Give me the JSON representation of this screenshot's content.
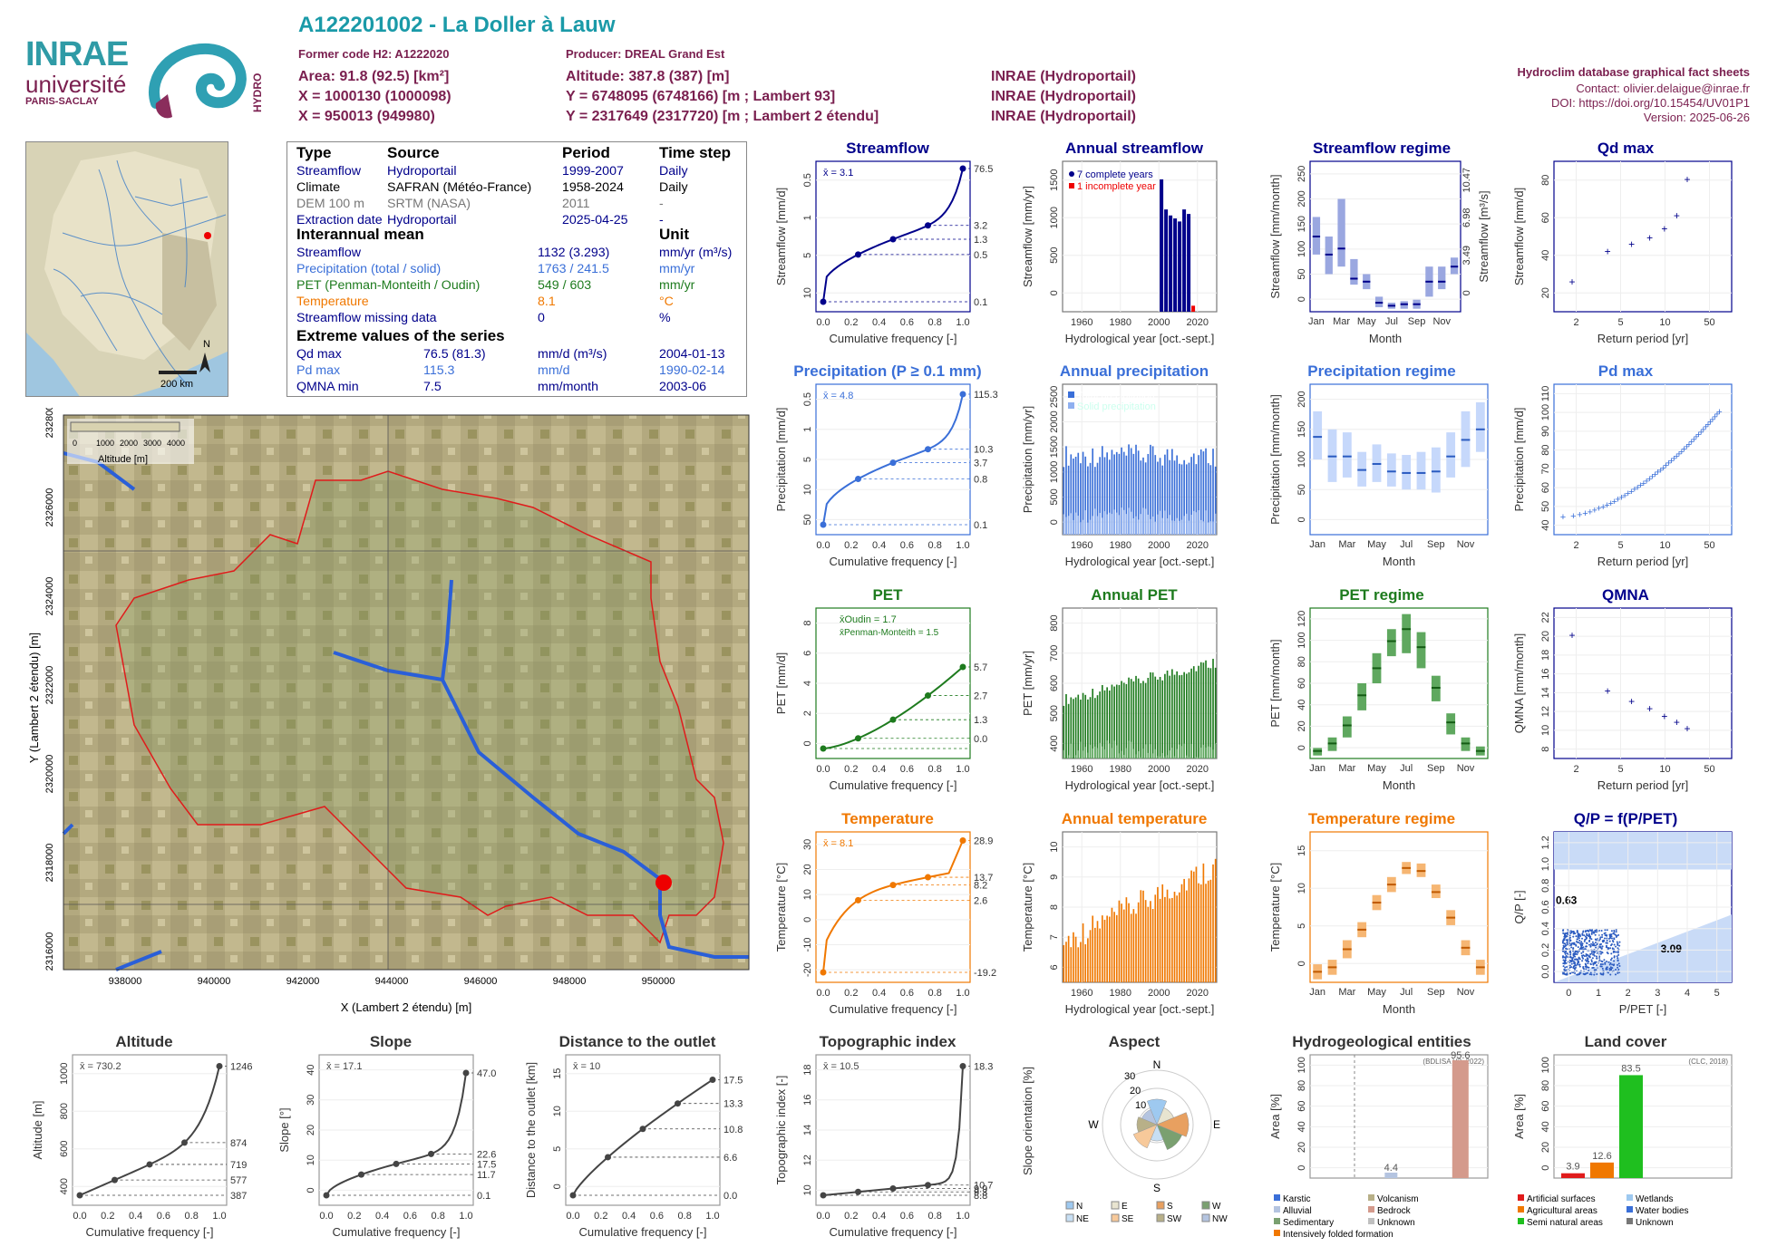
{
  "logo": {
    "inrae": "INRAE",
    "universite": "université",
    "paris_saclay": "PARIS-SACLAY",
    "hydro": "HYDRO"
  },
  "header": {
    "title": "A122201002 - La Doller à Lauw",
    "former_code": "Former code H2: A1222020",
    "producer": "Producer: DREAL Grand Est",
    "area": "Area: 91.8 (92.5) [km²]",
    "altitude": "Altitude: 387.8 (387) [m]",
    "x93": "X = 1000130 (1000098)",
    "y93": "Y = 6748095 (6748166) [m ; Lambert 93]",
    "src93": "INRAE (Hydroportail)",
    "x2e": "X = 950013 (949980)",
    "y2e": "Y = 2317649 (2317720) [m ; Lambert 2 étendu]",
    "src2e": "INRAE (Hydroportail)",
    "src_area": "INRAE (Hydroportail)",
    "db": "Hydroclim database graphical fact sheets",
    "contact": "Contact: olivier.delaigue@inrae.fr",
    "doi": "DOI: https://doi.org/10.15454/UV01P1",
    "version": "Version: 2025-06-26"
  },
  "locmap": {
    "scale": "200 km",
    "north": "N"
  },
  "colors": {
    "streamflow": "#00008b",
    "precip": "#3a6fd8",
    "pet": "#1e7b1e",
    "temp": "#f07800",
    "title": "#1a7f8f",
    "maroon": "#7a1f4f"
  },
  "info": {
    "h_type": "Type",
    "h_source": "Source",
    "h_period": "Period",
    "h_step": "Time step",
    "rows": [
      {
        "t": "Streamflow",
        "s": "Hydroportail",
        "p": "1999-2007",
        "ts": "Daily",
        "c": "#00008b"
      },
      {
        "t": "Climate",
        "s": "SAFRAN (Météo-France)",
        "p": "1958-2024",
        "ts": "Daily",
        "c": "#000"
      },
      {
        "t": "DEM 100 m",
        "s": "SRTM (NASA)",
        "p": "2011",
        "ts": "-",
        "c": "#777"
      },
      {
        "t": "Extraction date",
        "s": "Hydroportail",
        "p": "2025-04-25",
        "ts": "-",
        "c": "#00008b"
      }
    ],
    "h_mean": "Interannual mean",
    "h_unit": "Unit",
    "means": [
      {
        "t": "Streamflow",
        "v": "1132 (3.293)",
        "u": "mm/yr (m³/s)",
        "c": "#00008b"
      },
      {
        "t": "Precipitation (total / solid)",
        "v": "1763 / 241.5",
        "u": "mm/yr",
        "c": "#3a6fd8"
      },
      {
        "t": "PET (Penman-Monteith / Oudin)",
        "v": "549 / 603",
        "u": "mm/yr",
        "c": "#1e7b1e"
      },
      {
        "t": "Temperature",
        "v": "8.1",
        "u": "°C",
        "c": "#f07800"
      },
      {
        "t": "Streamflow missing data",
        "v": "0",
        "u": "%",
        "c": "#00008b"
      }
    ],
    "h_ext": "Extreme values of the series",
    "ext": [
      {
        "t": "Qd max",
        "v": "76.5 (81.3)",
        "u": "mm/d (m³/s)",
        "d": "2004-01-13",
        "c": "#00008b"
      },
      {
        "t": "Pd max",
        "v": "115.3",
        "u": "mm/d",
        "d": "1990-02-14",
        "c": "#3a6fd8"
      },
      {
        "t": "QMNA min",
        "v": "7.5",
        "u": "mm/month",
        "d": "2003-06",
        "c": "#00008b"
      }
    ]
  },
  "bigmap": {
    "legend_title": "Altitude [m]",
    "legend_ticks": [
      "0",
      "1000",
      "2000",
      "3000",
      "4000"
    ],
    "xlabel": "X (Lambert 2 étendu) [m]",
    "ylabel": "Y (Lambert 2 étendu) [m]",
    "xticks": [
      "938000",
      "940000",
      "942000",
      "944000",
      "946000",
      "948000",
      "950000"
    ],
    "yticks": [
      "2316000",
      "2318000",
      "2320000",
      "2322000",
      "2324000",
      "2326000",
      "2328000"
    ]
  },
  "charts": {
    "streamflow": {
      "title": "Streamflow",
      "ylabel": "Streamflow [mm/d]",
      "xlabel": "Cumulative frequency [-]",
      "mean": "x̄ = 3.1",
      "right": [
        "76.5",
        "3.2",
        "1.3",
        "0.5",
        "0.1"
      ],
      "yticks": [
        "10",
        "5",
        "1",
        "0.5"
      ]
    },
    "annual_streamflow": {
      "title": "Annual streamflow",
      "ylabel": "Streamflow [mm/yr]",
      "xlabel": "Hydrological year [oct.-sept.]",
      "leg1": "7 complete years",
      "leg2": "1 incomplete year",
      "yticks": [
        "0",
        "500",
        "1000",
        "1500"
      ],
      "xticks": [
        "1960",
        "1980",
        "2000",
        "2020"
      ]
    },
    "streamflow_regime": {
      "title": "Streamflow regime",
      "ylabel": "Streamflow [mm/month]",
      "ylabel2": "Streamflow [m³/s]",
      "xlabel": "Month",
      "months": [
        "Jan",
        "Mar",
        "May",
        "Jul",
        "Sep",
        "Nov"
      ],
      "yticks": [
        "0",
        "50",
        "100",
        "150",
        "200",
        "250"
      ],
      "yticks2": [
        "0",
        "3.49",
        "6.98",
        "10.47"
      ]
    },
    "qd_max": {
      "title": "Qd max",
      "ylabel": "Streamflow [mm/d]",
      "xlabel": "Return period [yr]",
      "yticks": [
        "20",
        "40",
        "60",
        "80"
      ],
      "xticks": [
        "2",
        "5",
        "10",
        "50"
      ]
    },
    "precipitation": {
      "title": "Precipitation (P ≥ 0.1 mm)",
      "ylabel": "Precipitation [mm/d]",
      "xlabel": "Cumulative frequency [-]",
      "mean": "x̄ = 4.8",
      "right": [
        "115.3",
        "10.3",
        "3.7",
        "0.8",
        "0.1"
      ],
      "yticks": [
        "50",
        "10",
        "5",
        "1",
        "0.5"
      ]
    },
    "annual_precipitation": {
      "title": "Annual precipitation",
      "ylabel": "Precipitation [mm/yr]",
      "xlabel": "Hydrological year [oct.-sept.]",
      "leg1": "Total precipitation",
      "leg2": "Solid precipitation",
      "yticks": [
        "0",
        "500",
        "1000",
        "1500",
        "2000",
        "2500"
      ],
      "xticks": [
        "1960",
        "1980",
        "2000",
        "2020"
      ]
    },
    "precipitation_regime": {
      "title": "Precipitation regime",
      "ylabel": "Precipitation [mm/month]",
      "xlabel": "Month",
      "months": [
        "Jan",
        "Mar",
        "May",
        "Jul",
        "Sep",
        "Nov"
      ],
      "yticks": [
        "0",
        "50",
        "100",
        "150",
        "200"
      ]
    },
    "pd_max": {
      "title": "Pd max",
      "ylabel": "Precipitation [mm/d]",
      "xlabel": "Return period [yr]",
      "yticks": [
        "40",
        "50",
        "60",
        "70",
        "80",
        "90",
        "100",
        "110"
      ],
      "xticks": [
        "2",
        "5",
        "10",
        "50"
      ]
    },
    "pet": {
      "title": "PET",
      "ylabel": "PET [mm/d]",
      "xlabel": "Cumulative frequency [-]",
      "mean1": "x̄Oudin = 1.7",
      "mean2": "x̄Penman-Monteith = 1.5",
      "right": [
        "5.7",
        "2.7",
        "1.3",
        "0.0"
      ],
      "yticks": [
        "0",
        "2",
        "4",
        "6",
        "8"
      ]
    },
    "annual_pet": {
      "title": "Annual PET",
      "ylabel": "PET [mm/yr]",
      "xlabel": "Hydrological year [oct.-sept.]",
      "yticks": [
        "400",
        "500",
        "600",
        "700",
        "800"
      ],
      "xticks": [
        "1960",
        "1980",
        "2000",
        "2020"
      ]
    },
    "pet_regime": {
      "title": "PET regime",
      "ylabel": "PET [mm/month]",
      "xlabel": "Month",
      "months": [
        "Jan",
        "Mar",
        "May",
        "Jul",
        "Sep",
        "Nov"
      ],
      "yticks": [
        "0",
        "20",
        "40",
        "60",
        "80",
        "100",
        "120"
      ]
    },
    "qmna": {
      "title": "QMNA",
      "ylabel": "QMNA [mm/month]",
      "xlabel": "Return period [yr]",
      "yticks": [
        "8",
        "10",
        "12",
        "14",
        "16",
        "18",
        "20",
        "22"
      ],
      "xticks": [
        "2",
        "5",
        "10",
        "50"
      ]
    },
    "temperature": {
      "title": "Temperature",
      "ylabel": "Temperature [°C]",
      "xlabel": "Cumulative frequency [-]",
      "mean": "x̄ = 8.1",
      "right": [
        "28.9",
        "13.7",
        "8.2",
        "2.6",
        "-19.2"
      ],
      "yticks": [
        "-20",
        "-10",
        "0",
        "10",
        "20",
        "30"
      ]
    },
    "annual_temperature": {
      "title": "Annual temperature",
      "ylabel": "Temperature [°C]",
      "xlabel": "Hydrological year [oct.-sept.]",
      "yticks": [
        "6",
        "7",
        "8",
        "9",
        "10"
      ],
      "xticks": [
        "1960",
        "1980",
        "2000",
        "2020"
      ]
    },
    "temperature_regime": {
      "title": "Temperature regime",
      "ylabel": "Temperature [°C]",
      "xlabel": "Month",
      "months": [
        "Jan",
        "Mar",
        "May",
        "Jul",
        "Sep",
        "Nov"
      ],
      "yticks": [
        "0",
        "5",
        "10",
        "15"
      ]
    },
    "qp": {
      "title": "Q/P = f(P/PET)",
      "ylabel": "Q/P [-]",
      "xlabel": "P/PET [-]",
      "lab1": "0.63",
      "lab2": "3.09",
      "yticks": [
        "0.0",
        "0.2",
        "0.4",
        "0.6",
        "0.8",
        "1.0",
        "1.2"
      ],
      "xticks": [
        "0",
        "1",
        "2",
        "3",
        "4",
        "5"
      ]
    },
    "altitude": {
      "title": "Altitude",
      "ylabel": "Altitude [m]",
      "xlabel": "Cumulative frequency [-]",
      "mean": "x̄ = 730.2",
      "right": [
        "1246",
        "874",
        "719",
        "577",
        "387"
      ],
      "yticks": [
        "400",
        "600",
        "800",
        "1000"
      ]
    },
    "slope": {
      "title": "Slope",
      "ylabel": "Slope [°]",
      "xlabel": "Cumulative frequency [-]",
      "mean": "x̄ = 17.1",
      "right": [
        "47.0",
        "22.6",
        "17.5",
        "11.7",
        "0.1"
      ],
      "yticks": [
        "0",
        "10",
        "20",
        "30",
        "40"
      ]
    },
    "distance": {
      "title": "Distance to the outlet",
      "ylabel": "Distance to the outlet [km]",
      "xlabel": "Cumulative frequency [-]",
      "mean": "x̄ = 10",
      "right": [
        "17.5",
        "13.3",
        "10.8",
        "6.6",
        "0.0"
      ],
      "yticks": [
        "0",
        "5",
        "10",
        "15"
      ]
    },
    "topo": {
      "title": "Topographic index",
      "ylabel": "Topographic index [-]",
      "xlabel": "Cumulative frequency [-]",
      "mean": "x̄ = 10.5",
      "right": [
        "18.3",
        "10.7",
        "9.9",
        "9.3",
        "8.8"
      ],
      "yticks": [
        "10",
        "12",
        "14",
        "16",
        "18"
      ]
    },
    "aspect": {
      "title": "Aspect",
      "ylabel": "Slope orientation [%]",
      "dirs": [
        "N",
        "E",
        "S",
        "W"
      ],
      "rings": [
        "10",
        "20",
        "30"
      ],
      "legend": [
        "N",
        "E",
        "S",
        "W",
        "NE",
        "SE",
        "SW",
        "NW"
      ]
    },
    "hydrogeo": {
      "title": "Hydrogeological entities",
      "ylabel": "Area [%]",
      "note": "(BDLISA V3, 2022)",
      "v1": "4.4",
      "v2": "95.6",
      "yticks": [
        "0",
        "20",
        "40",
        "60",
        "80",
        "100"
      ],
      "legend": [
        "Karstic",
        "Volcanism",
        "Alluvial",
        "Bedrock",
        "Sedimentary",
        "Unknown",
        "Intensively folded formation"
      ]
    },
    "landcover": {
      "title": "Land cover",
      "ylabel": "Area [%]",
      "note": "(CLC, 2018)",
      "v1": "3.9",
      "v2": "12.6",
      "v3": "83.5",
      "yticks": [
        "0",
        "20",
        "40",
        "60",
        "80",
        "100"
      ],
      "legend": [
        "Artificial surfaces",
        "Wetlands",
        "Agricultural areas",
        "Water bodies",
        "Semi natural areas",
        "Unknown"
      ]
    }
  },
  "chart_data": [
    {
      "type": "line",
      "title": "Streamflow",
      "x": [
        0,
        0.25,
        0.5,
        0.75,
        1
      ],
      "values": [
        0.1,
        0.5,
        1.3,
        3.2,
        76.5
      ]
    },
    {
      "type": "bar",
      "title": "Annual streamflow",
      "categories": [
        "2000",
        "2001",
        "2002",
        "2003",
        "2004",
        "2005",
        "2006",
        "2007"
      ],
      "values": [
        1500,
        1150,
        1080,
        1050,
        1000,
        1150,
        1100,
        60
      ]
    },
    {
      "type": "scatter",
      "title": "Qd max",
      "x": [
        1.1,
        1.5,
        1.8,
        2.2,
        2.8,
        3.8,
        7
      ],
      "values": [
        17,
        35,
        39,
        43,
        48,
        56,
        77
      ]
    },
    {
      "type": "scatter",
      "title": "QMNA",
      "x": [
        1.1,
        1.5,
        1.8,
        2.2,
        2.8,
        3.8,
        7
      ],
      "values": [
        22.8,
        14.2,
        12.2,
        10.5,
        9.4,
        8.2,
        7.5
      ]
    }
  ]
}
